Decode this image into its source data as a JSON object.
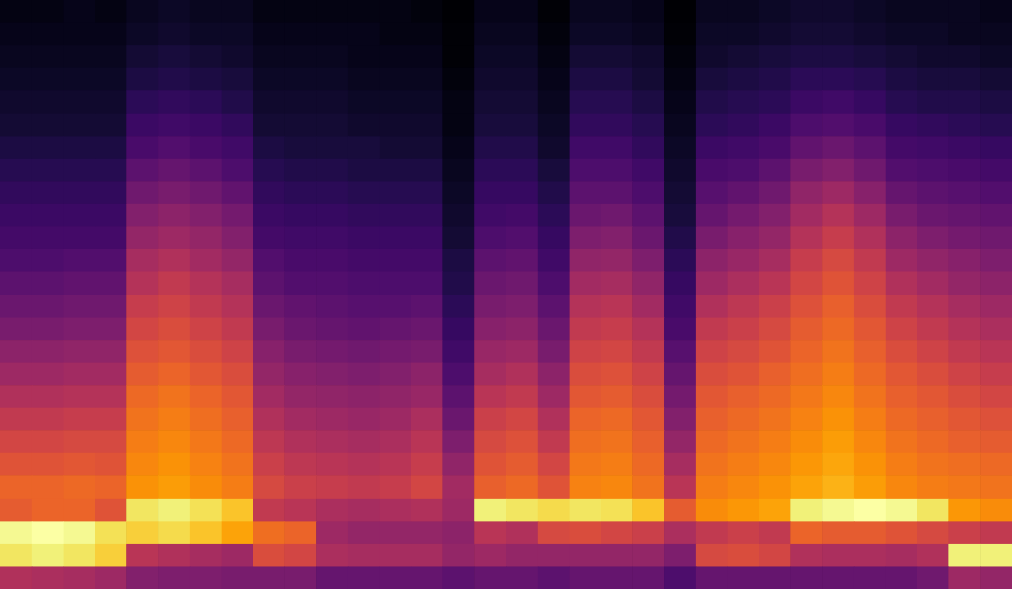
{
  "chart_data": {
    "type": "heatmap",
    "tick_labels": false,
    "cells": [
      [
        8,
        8,
        9,
        8,
        10,
        11,
        10,
        10,
        8,
        8,
        8,
        8,
        8,
        7,
        5,
        9,
        9,
        6,
        10,
        10,
        9,
        5,
        10,
        10,
        11,
        12,
        12,
        11,
        10,
        10,
        10,
        9
      ],
      [
        9,
        9,
        9,
        9,
        11,
        12,
        11,
        11,
        9,
        9,
        9,
        9,
        8,
        8,
        6,
        10,
        10,
        7,
        11,
        11,
        10,
        6,
        11,
        11,
        12,
        13,
        13,
        12,
        11,
        11,
        10,
        10
      ],
      [
        10,
        10,
        10,
        10,
        13,
        14,
        13,
        12,
        10,
        10,
        10,
        9,
        9,
        9,
        6,
        11,
        11,
        8,
        13,
        13,
        12,
        7,
        12,
        13,
        14,
        15,
        15,
        14,
        13,
        12,
        12,
        11
      ],
      [
        11,
        11,
        11,
        11,
        15,
        16,
        15,
        14,
        11,
        11,
        11,
        10,
        10,
        10,
        7,
        12,
        12,
        9,
        15,
        15,
        13,
        8,
        14,
        15,
        16,
        18,
        18,
        17,
        15,
        14,
        14,
        13
      ],
      [
        12,
        12,
        12,
        12,
        18,
        19,
        18,
        16,
        12,
        12,
        12,
        11,
        11,
        11,
        8,
        13,
        13,
        10,
        17,
        17,
        15,
        9,
        16,
        17,
        18,
        21,
        22,
        20,
        17,
        16,
        16,
        15
      ],
      [
        13,
        13,
        13,
        13,
        21,
        22,
        21,
        19,
        13,
        13,
        13,
        12,
        12,
        12,
        8,
        14,
        14,
        11,
        19,
        19,
        17,
        10,
        18,
        19,
        21,
        25,
        26,
        24,
        20,
        19,
        18,
        17
      ],
      [
        15,
        15,
        15,
        15,
        24,
        26,
        24,
        22,
        15,
        14,
        14,
        14,
        13,
        13,
        9,
        16,
        16,
        12,
        22,
        22,
        19,
        11,
        21,
        22,
        24,
        29,
        31,
        28,
        23,
        22,
        21,
        20
      ],
      [
        17,
        17,
        17,
        17,
        28,
        30,
        28,
        25,
        17,
        16,
        16,
        15,
        15,
        15,
        10,
        18,
        18,
        14,
        25,
        25,
        22,
        12,
        24,
        25,
        28,
        34,
        36,
        32,
        26,
        25,
        24,
        23
      ],
      [
        19,
        19,
        19,
        19,
        32,
        34,
        32,
        29,
        19,
        18,
        18,
        17,
        17,
        17,
        11,
        20,
        20,
        16,
        28,
        28,
        25,
        13,
        27,
        29,
        32,
        39,
        42,
        37,
        30,
        28,
        27,
        26
      ],
      [
        21,
        21,
        21,
        21,
        36,
        38,
        36,
        33,
        21,
        20,
        20,
        19,
        19,
        19,
        12,
        22,
        23,
        18,
        31,
        32,
        28,
        14,
        30,
        33,
        36,
        43,
        47,
        42,
        34,
        31,
        30,
        29
      ],
      [
        23,
        23,
        23,
        23,
        40,
        42,
        40,
        36,
        23,
        22,
        22,
        21,
        21,
        21,
        13,
        25,
        26,
        20,
        35,
        36,
        31,
        16,
        34,
        37,
        40,
        47,
        51,
        46,
        38,
        35,
        33,
        32
      ],
      [
        25,
        25,
        26,
        26,
        44,
        46,
        43,
        40,
        26,
        24,
        24,
        23,
        23,
        23,
        15,
        28,
        29,
        22,
        39,
        40,
        35,
        18,
        38,
        41,
        44,
        51,
        55,
        50,
        42,
        39,
        37,
        35
      ],
      [
        28,
        28,
        29,
        29,
        47,
        50,
        47,
        44,
        28,
        26,
        26,
        25,
        25,
        25,
        16,
        31,
        32,
        25,
        43,
        44,
        39,
        20,
        42,
        45,
        48,
        54,
        58,
        53,
        46,
        43,
        40,
        38
      ],
      [
        31,
        31,
        32,
        32,
        51,
        53,
        50,
        47,
        31,
        29,
        28,
        27,
        27,
        28,
        18,
        34,
        35,
        28,
        47,
        48,
        43,
        22,
        46,
        49,
        52,
        57,
        61,
        56,
        50,
        47,
        44,
        42
      ],
      [
        34,
        34,
        35,
        35,
        54,
        56,
        53,
        50,
        34,
        31,
        30,
        29,
        30,
        31,
        20,
        37,
        38,
        31,
        50,
        51,
        47,
        24,
        50,
        52,
        55,
        60,
        63,
        59,
        53,
        50,
        47,
        45
      ],
      [
        38,
        38,
        39,
        39,
        57,
        59,
        56,
        53,
        37,
        34,
        33,
        32,
        33,
        34,
        22,
        41,
        42,
        34,
        53,
        54,
        50,
        27,
        53,
        55,
        58,
        62,
        65,
        61,
        56,
        53,
        50,
        48
      ],
      [
        42,
        42,
        43,
        43,
        60,
        62,
        59,
        56,
        40,
        37,
        36,
        35,
        36,
        38,
        25,
        44,
        46,
        38,
        56,
        57,
        53,
        30,
        56,
        58,
        61,
        64,
        67,
        63,
        59,
        56,
        53,
        51
      ],
      [
        46,
        46,
        47,
        47,
        63,
        65,
        62,
        59,
        43,
        40,
        39,
        38,
        39,
        41,
        28,
        48,
        50,
        42,
        59,
        60,
        56,
        33,
        59,
        61,
        63,
        66,
        69,
        65,
        61,
        59,
        56,
        54
      ],
      [
        50,
        50,
        51,
        51,
        65,
        67,
        64,
        61,
        46,
        43,
        42,
        41,
        42,
        45,
        31,
        52,
        54,
        46,
        62,
        63,
        59,
        36,
        61,
        63,
        65,
        68,
        71,
        67,
        63,
        61,
        59,
        57
      ],
      [
        54,
        54,
        55,
        55,
        67,
        69,
        66,
        63,
        49,
        46,
        45,
        44,
        45,
        48,
        35,
        55,
        57,
        50,
        64,
        65,
        61,
        40,
        63,
        65,
        67,
        70,
        73,
        69,
        65,
        63,
        61,
        60
      ],
      [
        58,
        58,
        59,
        58,
        69,
        71,
        68,
        65,
        52,
        49,
        48,
        47,
        48,
        51,
        39,
        58,
        60,
        54,
        66,
        67,
        63,
        44,
        65,
        67,
        69,
        72,
        75,
        71,
        67,
        65,
        64,
        63
      ],
      [
        62,
        62,
        63,
        62,
        71,
        73,
        70,
        67,
        55,
        52,
        51,
        50,
        51,
        54,
        43,
        61,
        63,
        58,
        68,
        69,
        65,
        48,
        67,
        69,
        71,
        74,
        77,
        73,
        69,
        67,
        66,
        65
      ],
      [
        60,
        62,
        62,
        58,
        86,
        88,
        85,
        80,
        50,
        48,
        45,
        44,
        45,
        46,
        42,
        88,
        86,
        84,
        86,
        85,
        80,
        60,
        70,
        72,
        74,
        88,
        90,
        92,
        90,
        86,
        72,
        70
      ],
      [
        90,
        92,
        90,
        85,
        82,
        84,
        80,
        74,
        64,
        62,
        42,
        40,
        40,
        40,
        38,
        48,
        46,
        55,
        56,
        54,
        52,
        45,
        50,
        52,
        50,
        62,
        60,
        60,
        58,
        55,
        52,
        50
      ],
      [
        86,
        88,
        86,
        82,
        48,
        46,
        44,
        42,
        56,
        54,
        45,
        44,
        44,
        44,
        40,
        42,
        40,
        40,
        40,
        40,
        40,
        35,
        55,
        56,
        54,
        46,
        45,
        45,
        44,
        46,
        88,
        88
      ],
      [
        46,
        45,
        44,
        42,
        36,
        35,
        35,
        34,
        34,
        34,
        30,
        30,
        30,
        30,
        28,
        30,
        30,
        28,
        30,
        30,
        30,
        25,
        30,
        30,
        30,
        30,
        30,
        30,
        30,
        32,
        42,
        40
      ]
    ]
  }
}
